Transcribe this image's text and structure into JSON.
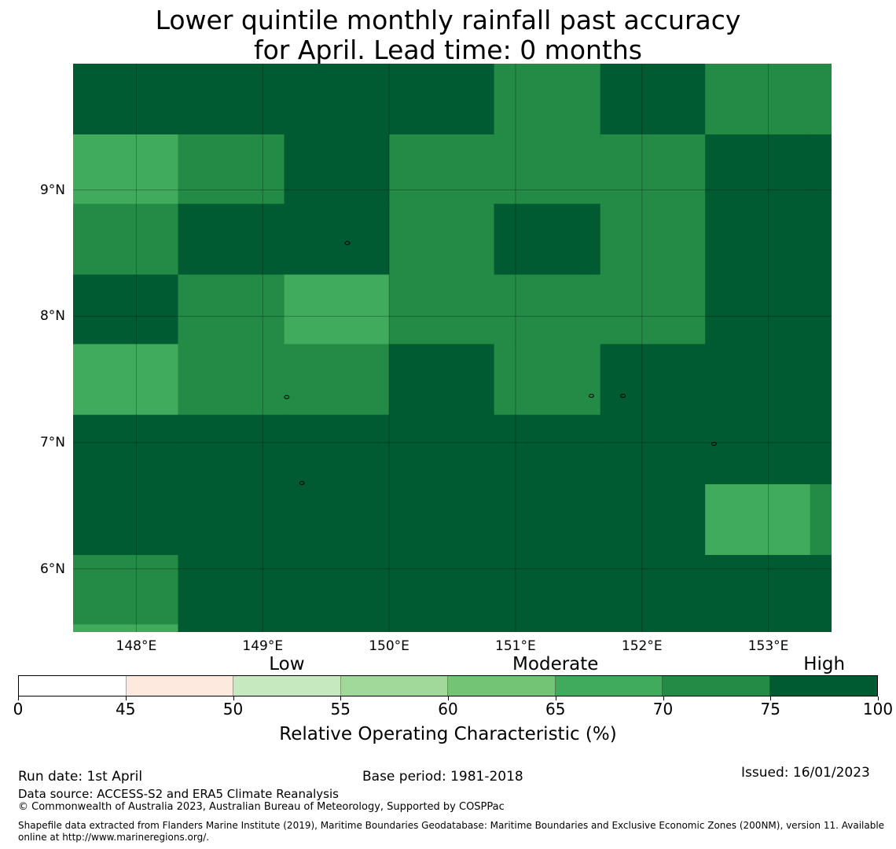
{
  "title_line1": "Lower quintile monthly rainfall past accuracy",
  "title_line2": "for April. Lead time: 0 months",
  "map": {
    "lon_range": [
      147.5,
      153.5
    ],
    "lat_range": [
      5.5,
      10.0
    ],
    "grid_lon_edges": [
      147.5,
      148.33,
      149.17,
      150.0,
      150.83,
      151.67,
      152.5,
      153.33,
      153.5
    ],
    "grid_lat_edges": [
      10.0,
      9.44,
      8.89,
      8.33,
      7.78,
      7.22,
      6.67,
      6.11,
      5.56,
      5.5
    ],
    "category_grid": [
      [
        7,
        7,
        7,
        7,
        6,
        7,
        6,
        6
      ],
      [
        5,
        6,
        7,
        6,
        6,
        6,
        7,
        7
      ],
      [
        6,
        7,
        7,
        6,
        7,
        6,
        7,
        7
      ],
      [
        7,
        6,
        5,
        6,
        6,
        6,
        7,
        7
      ],
      [
        5,
        6,
        6,
        7,
        6,
        7,
        7,
        7
      ],
      [
        7,
        7,
        7,
        7,
        7,
        7,
        7,
        7
      ],
      [
        7,
        7,
        7,
        7,
        7,
        7,
        5,
        6
      ],
      [
        6,
        7,
        7,
        7,
        7,
        7,
        7,
        7
      ],
      [
        5,
        7,
        7,
        7,
        7,
        7,
        7,
        7
      ]
    ],
    "lon_ticks": [
      148,
      149,
      150,
      151,
      152,
      153
    ],
    "lon_tick_labels": [
      "148°E",
      "149°E",
      "150°E",
      "151°E",
      "152°E",
      "153°E"
    ],
    "lat_ticks": [
      9,
      8,
      7,
      6
    ],
    "lat_tick_labels": [
      "9°N",
      "8°N",
      "7°N",
      "6°N"
    ],
    "islands": [
      {
        "lon": 149.67,
        "lat": 8.58
      },
      {
        "lon": 149.19,
        "lat": 7.36
      },
      {
        "lon": 151.6,
        "lat": 7.37
      },
      {
        "lon": 151.85,
        "lat": 7.37
      },
      {
        "lon": 152.57,
        "lat": 6.99
      },
      {
        "lon": 149.31,
        "lat": 6.68
      }
    ]
  },
  "colorbar": {
    "boundaries": [
      0,
      45,
      50,
      55,
      60,
      65,
      70,
      75,
      100
    ],
    "tick_labels": [
      "0",
      "45",
      "50",
      "55",
      "60",
      "65",
      "70",
      "75",
      "100"
    ],
    "colors": [
      "#ffffff",
      "#fee9df",
      "#c7e9c0",
      "#a1d99b",
      "#74c476",
      "#41ab5d",
      "#238b45",
      "#005a32"
    ],
    "categories": [
      {
        "label": "Low",
        "center_value": 52.5
      },
      {
        "label": "Moderate",
        "center_value": 65
      },
      {
        "label": "High",
        "center_value": 87.5
      }
    ],
    "label": "Relative Operating Characteristic (%)"
  },
  "footer": {
    "run_date": "Run date: 1st April",
    "base_period": "Base period: 1981-2018",
    "issued": "Issued: 16/01/2023",
    "data_source": "Data source: ACCESS-S2 and ERA5 Climate Reanalysis",
    "copyright": "© Commonwealth of Australia 2023, Australian Bureau of Meteorology, Supported by COSPPac",
    "shapefile_line1": "Shapefile data extracted from Flanders Marine Institute (2019), Maritime Boundaries Geodatabase: Maritime Boundaries and Exclusive Economic Zones (200NM), version 11. Available",
    "shapefile_line2": "online at http://www.marineregions.org/."
  }
}
